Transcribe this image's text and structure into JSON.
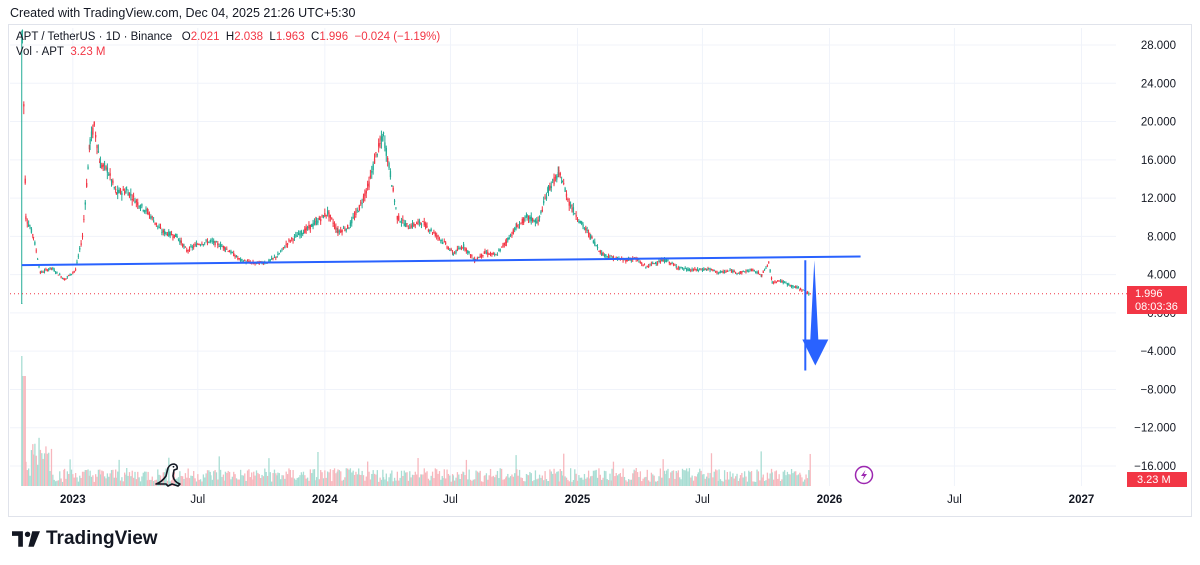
{
  "header": {
    "created_text": "Created with TradingView.com, Dec 04, 2025 21:26 UTC+5:30"
  },
  "legend": {
    "symbol": "APT / TetherUS · 1D · Binance",
    "open_label": "O",
    "open_value": "2.021",
    "high_label": "H",
    "high_value": "2.038",
    "low_label": "L",
    "low_value": "1.963",
    "close_label": "C",
    "close_value": "1.996",
    "change": "−0.024 (−1.19%)",
    "vol_label": "Vol · APT",
    "vol_value": "3.23 M"
  },
  "badges": {
    "price": "1.996",
    "countdown": "08:03:36",
    "volume": "3.23 M"
  },
  "footer": {
    "brand": "TradingView"
  },
  "colors": {
    "up": "#22ab94",
    "down": "#f23645",
    "trendline": "#2962ff",
    "grid": "#f0f3fa",
    "volume_up": "#a8ddd3",
    "volume_down": "#f7b7bd"
  },
  "chart_data": {
    "type": "candlestick",
    "y_axis": {
      "min": -18,
      "max": 30,
      "ticks": [
        28.0,
        24.0,
        20.0,
        16.0,
        12.0,
        8.0,
        4.0,
        0.0,
        -4.0,
        -8.0,
        -12.0,
        -16.0
      ],
      "tick_labels": [
        "28.000",
        "24.000",
        "20.000",
        "16.000",
        "12.000",
        "8.000",
        "4.000",
        "0.000",
        "−4.000",
        "−8.000",
        "−12.000",
        "−16.000"
      ]
    },
    "x_axis": {
      "ticks": [
        {
          "date": "2023-01-01",
          "label": "2023",
          "bold": true
        },
        {
          "date": "2023-07-01",
          "label": "Jul",
          "bold": false
        },
        {
          "date": "2024-01-01",
          "label": "2024",
          "bold": true
        },
        {
          "date": "2024-07-01",
          "label": "Jul",
          "bold": false
        },
        {
          "date": "2025-01-01",
          "label": "2025",
          "bold": true
        },
        {
          "date": "2025-07-01",
          "label": "Jul",
          "bold": false
        },
        {
          "date": "2026-01-01",
          "label": "2026",
          "bold": true
        },
        {
          "date": "2026-07-01",
          "label": "Jul",
          "bold": false
        },
        {
          "date": "2027-01-01",
          "label": "2027",
          "bold": true
        }
      ]
    },
    "price_series": {
      "name": "APT / TetherUS",
      "points": [
        [
          "2022-10-19",
          1.0
        ],
        [
          "2022-10-20",
          29.5
        ],
        [
          "2022-10-25",
          10.0
        ],
        [
          "2022-11-05",
          8.0
        ],
        [
          "2022-11-15",
          4.2
        ],
        [
          "2022-12-01",
          4.7
        ],
        [
          "2022-12-20",
          3.5
        ],
        [
          "2023-01-05",
          4.5
        ],
        [
          "2023-01-15",
          8.0
        ],
        [
          "2023-01-26",
          18.0
        ],
        [
          "2023-02-01",
          19.5
        ],
        [
          "2023-02-10",
          15.5
        ],
        [
          "2023-02-20",
          15.0
        ],
        [
          "2023-03-05",
          12.5
        ],
        [
          "2023-03-20",
          12.8
        ],
        [
          "2023-04-05",
          11.5
        ],
        [
          "2023-04-20",
          10.5
        ],
        [
          "2023-05-10",
          8.5
        ],
        [
          "2023-06-01",
          8.0
        ],
        [
          "2023-06-15",
          6.5
        ],
        [
          "2023-07-01",
          7.2
        ],
        [
          "2023-07-20",
          7.5
        ],
        [
          "2023-08-10",
          6.8
        ],
        [
          "2023-09-01",
          5.5
        ],
        [
          "2023-09-20",
          5.2
        ],
        [
          "2023-10-10",
          5.3
        ],
        [
          "2023-10-25",
          6.0
        ],
        [
          "2023-11-10",
          7.5
        ],
        [
          "2023-12-01",
          8.5
        ],
        [
          "2023-12-20",
          9.5
        ],
        [
          "2024-01-05",
          10.5
        ],
        [
          "2024-01-20",
          8.5
        ],
        [
          "2024-02-05",
          9.0
        ],
        [
          "2024-02-20",
          11.0
        ],
        [
          "2024-03-05",
          13.5
        ],
        [
          "2024-03-15",
          16.5
        ],
        [
          "2024-03-26",
          18.5
        ],
        [
          "2024-04-05",
          14.5
        ],
        [
          "2024-04-15",
          10.0
        ],
        [
          "2024-05-01",
          9.0
        ],
        [
          "2024-05-20",
          9.5
        ],
        [
          "2024-06-05",
          8.5
        ],
        [
          "2024-06-20",
          7.5
        ],
        [
          "2024-07-05",
          6.2
        ],
        [
          "2024-07-20",
          7.0
        ],
        [
          "2024-08-05",
          5.5
        ],
        [
          "2024-08-20",
          6.3
        ],
        [
          "2024-09-05",
          6.0
        ],
        [
          "2024-09-20",
          7.5
        ],
        [
          "2024-10-05",
          9.0
        ],
        [
          "2024-10-20",
          10.0
        ],
        [
          "2024-11-05",
          9.5
        ],
        [
          "2024-11-20",
          13.0
        ],
        [
          "2024-12-05",
          14.5
        ],
        [
          "2024-12-10",
          13.8
        ],
        [
          "2024-12-20",
          11.5
        ],
        [
          "2025-01-05",
          9.5
        ],
        [
          "2025-01-20",
          8.0
        ],
        [
          "2025-02-05",
          6.2
        ],
        [
          "2025-02-20",
          5.8
        ],
        [
          "2025-03-10",
          5.5
        ],
        [
          "2025-03-25",
          5.7
        ],
        [
          "2025-04-10",
          4.8
        ],
        [
          "2025-04-25",
          5.3
        ],
        [
          "2025-05-10",
          5.5
        ],
        [
          "2025-05-25",
          4.8
        ],
        [
          "2025-06-10",
          4.5
        ],
        [
          "2025-06-25",
          4.5
        ],
        [
          "2025-07-10",
          4.6
        ],
        [
          "2025-07-25",
          4.2
        ],
        [
          "2025-08-10",
          4.4
        ],
        [
          "2025-08-25",
          4.2
        ],
        [
          "2025-09-10",
          4.5
        ],
        [
          "2025-09-25",
          4.0
        ],
        [
          "2025-10-05",
          5.2
        ],
        [
          "2025-10-10",
          3.2
        ],
        [
          "2025-10-20",
          3.4
        ],
        [
          "2025-11-05",
          2.9
        ],
        [
          "2025-11-20",
          2.5
        ],
        [
          "2025-12-04",
          1.996
        ]
      ]
    },
    "trendline": {
      "start": [
        "2022-10-19",
        5.0
      ],
      "end": [
        "2026-02-15",
        5.9
      ]
    },
    "last_price_line": 1.996,
    "projection_arrow": {
      "date": "2025-12-10",
      "from": 5.5,
      "to": -5.5
    }
  }
}
